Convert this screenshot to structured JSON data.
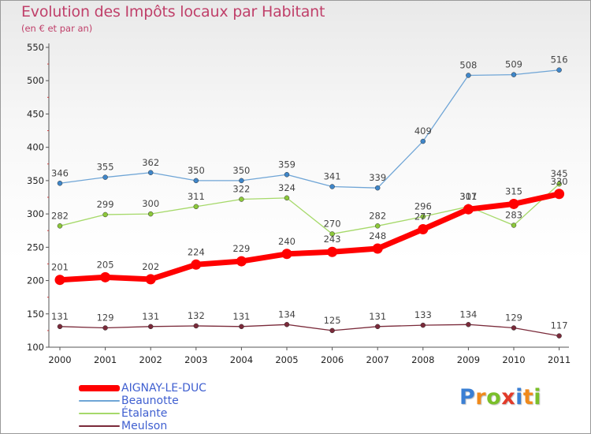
{
  "header": {
    "title": "Evolution des Impôts locaux par Habitant",
    "subtitle": "(en € et par an)"
  },
  "logo": {
    "letters": [
      "P",
      "r",
      "o",
      "x",
      "i",
      "t",
      "i"
    ],
    "colors": [
      "#3a7fd4",
      "#f08a1c",
      "#7abf2a",
      "#e23b2a",
      "#3a7fd4",
      "#f08a1c",
      "#7abf2a"
    ]
  },
  "chart_data": {
    "type": "line",
    "title": "Evolution des Impôts locaux par Habitant",
    "subtitle": "(en € et par an)",
    "x": [
      "2000",
      "2001",
      "2002",
      "2003",
      "2004",
      "2005",
      "2006",
      "2007",
      "2008",
      "2009",
      "2010",
      "2011"
    ],
    "ylim": [
      100,
      550
    ],
    "yticks": [
      100,
      150,
      200,
      250,
      300,
      350,
      400,
      450,
      500,
      550
    ],
    "grid": false,
    "legend_position": "bottom-left",
    "series": [
      {
        "name": "Beaunotte",
        "color": "#6fa5d6",
        "marker": "#3f86c9",
        "width": 1.3,
        "values": [
          346,
          355,
          362,
          350,
          350,
          359,
          341,
          339,
          409,
          508,
          509,
          516
        ],
        "labels": [
          "346",
          "355",
          "362",
          "350",
          "350",
          "359",
          "341",
          "339",
          "409",
          "508",
          "509",
          "516"
        ]
      },
      {
        "name": "Étalante",
        "color": "#a6d96a",
        "marker": "#8cc83a",
        "width": 1.3,
        "values": [
          282,
          299,
          300,
          311,
          322,
          324,
          270,
          282,
          296,
          311,
          283,
          345
        ],
        "labels": [
          "282",
          "299",
          "300",
          "311",
          "322",
          "324",
          "270",
          "282",
          "296",
          "311",
          "283",
          "345"
        ]
      },
      {
        "name": "Meulson",
        "color": "#7a2a3a",
        "marker": "#7a2a3a",
        "width": 1.3,
        "values": [
          131,
          129,
          131,
          132,
          131,
          134,
          125,
          131,
          133,
          134,
          129,
          117
        ],
        "labels": [
          "131",
          "129",
          "131",
          "132",
          "131",
          "134",
          "125",
          "131",
          "133",
          "134",
          "129",
          "117"
        ]
      },
      {
        "name": "AIGNAY-LE-DUC",
        "color": "#ff0000",
        "marker": "#ff0000",
        "width": 7,
        "values": [
          201,
          205,
          202,
          224,
          229,
          240,
          243,
          248,
          277,
          307,
          315,
          330
        ],
        "labels": [
          "201",
          "205",
          "202",
          "224",
          "229",
          "240",
          "243",
          "248",
          "277",
          "307",
          "315",
          "330"
        ]
      }
    ],
    "legend": [
      "AIGNAY-LE-DUC",
      "Beaunotte",
      "Étalante",
      "Meulson"
    ]
  }
}
